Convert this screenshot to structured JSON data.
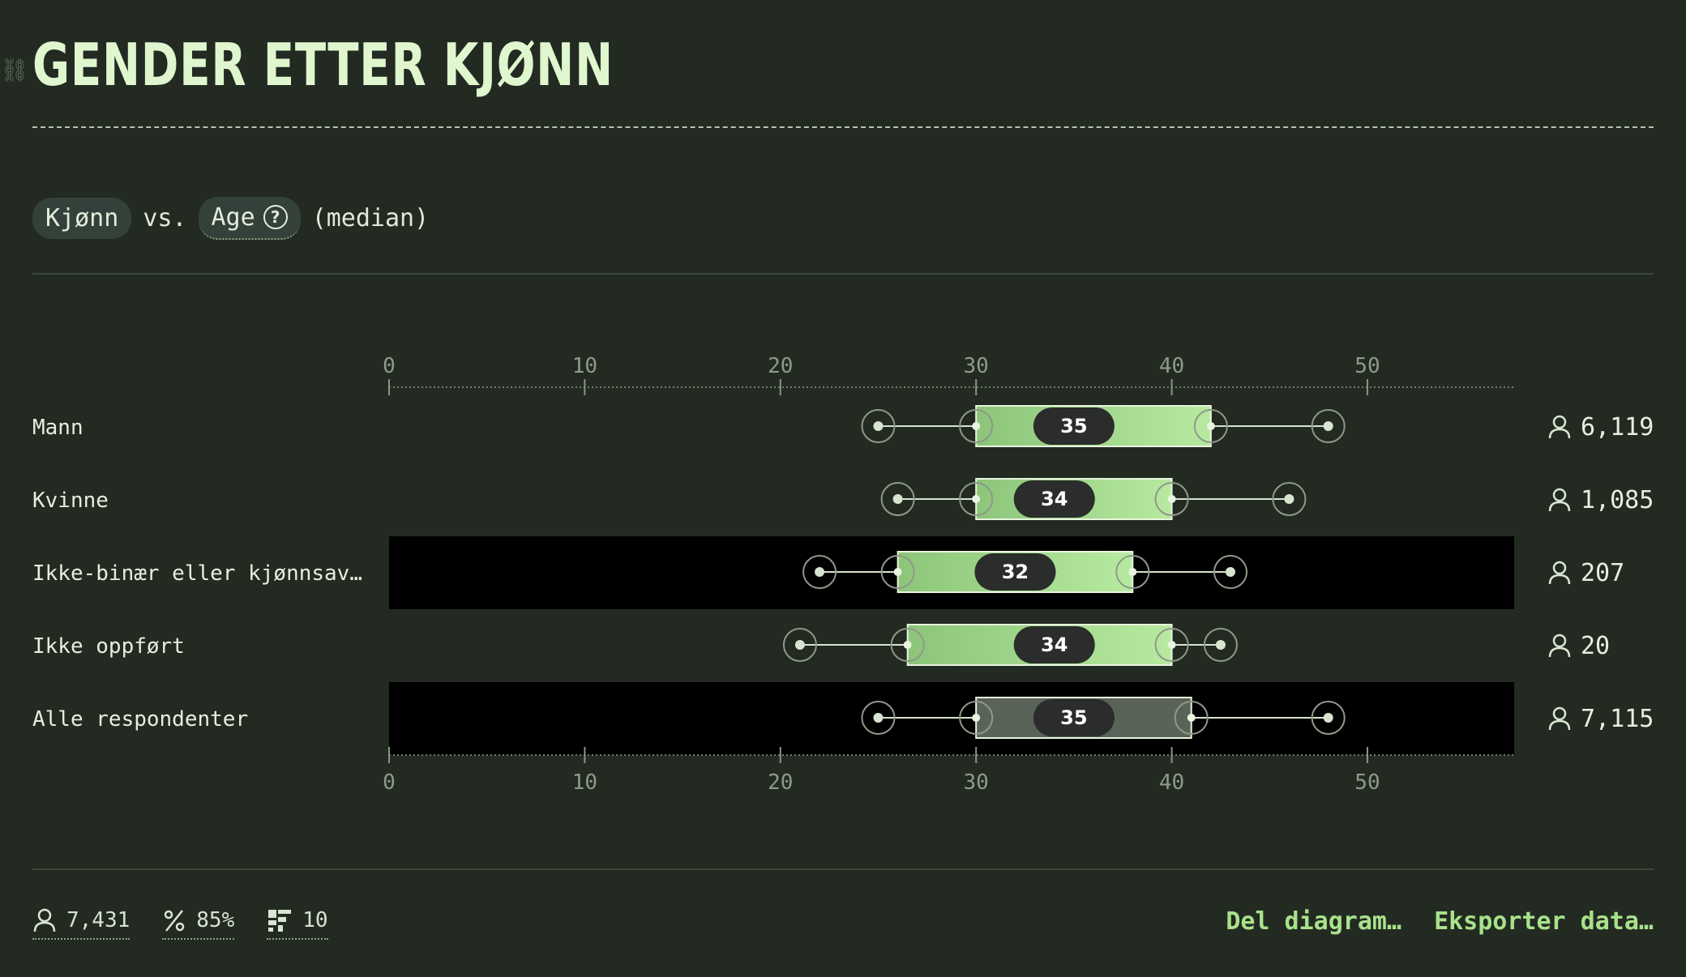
{
  "title": "GENDER ETTER KJØNN",
  "subhead": {
    "var1": "Kjønn",
    "vs": "vs.",
    "var2": "Age",
    "stat": "(median)"
  },
  "chart_data": {
    "type": "boxplot",
    "xlim": [
      0,
      57.5
    ],
    "ticks": [
      0,
      10,
      20,
      30,
      40,
      50
    ],
    "tick_labels": [
      "0",
      "10",
      "20",
      "30",
      "40",
      "50"
    ],
    "rows": [
      {
        "label": "Mann",
        "whisker_low": 25,
        "q1": 30,
        "median": 35,
        "q3": 42,
        "whisker_high": 48,
        "count": "6,119",
        "highlight": false
      },
      {
        "label": "Kvinne",
        "whisker_low": 26,
        "q1": 30,
        "median": 34,
        "q3": 40,
        "whisker_high": 46,
        "count": "1,085",
        "highlight": false
      },
      {
        "label": "Ikke-binær eller kjønnsav…",
        "whisker_low": 22,
        "q1": 26,
        "median": 32,
        "q3": 38,
        "whisker_high": 43,
        "count": "207",
        "highlight": false
      },
      {
        "label": "Ikke oppført",
        "whisker_low": 21,
        "q1": 26.5,
        "median": 34,
        "q3": 40,
        "whisker_high": 42.5,
        "count": "20",
        "highlight": false
      },
      {
        "label": "Alle respondenter",
        "whisker_low": 25,
        "q1": 30,
        "median": 35,
        "q3": 41,
        "whisker_high": 48,
        "count": "7,115",
        "highlight": true
      }
    ],
    "colors": {
      "box_start": "#8cc57a",
      "box_end": "#b7eaa0",
      "total_box": "#5a6358",
      "median_pill": "#2a2d2b",
      "band": "#2d3630"
    }
  },
  "footer": {
    "respondents": "7,431",
    "percent": "85%",
    "questions": "10",
    "share_label": "Del diagram…",
    "export_label": "Eksporter data…"
  }
}
